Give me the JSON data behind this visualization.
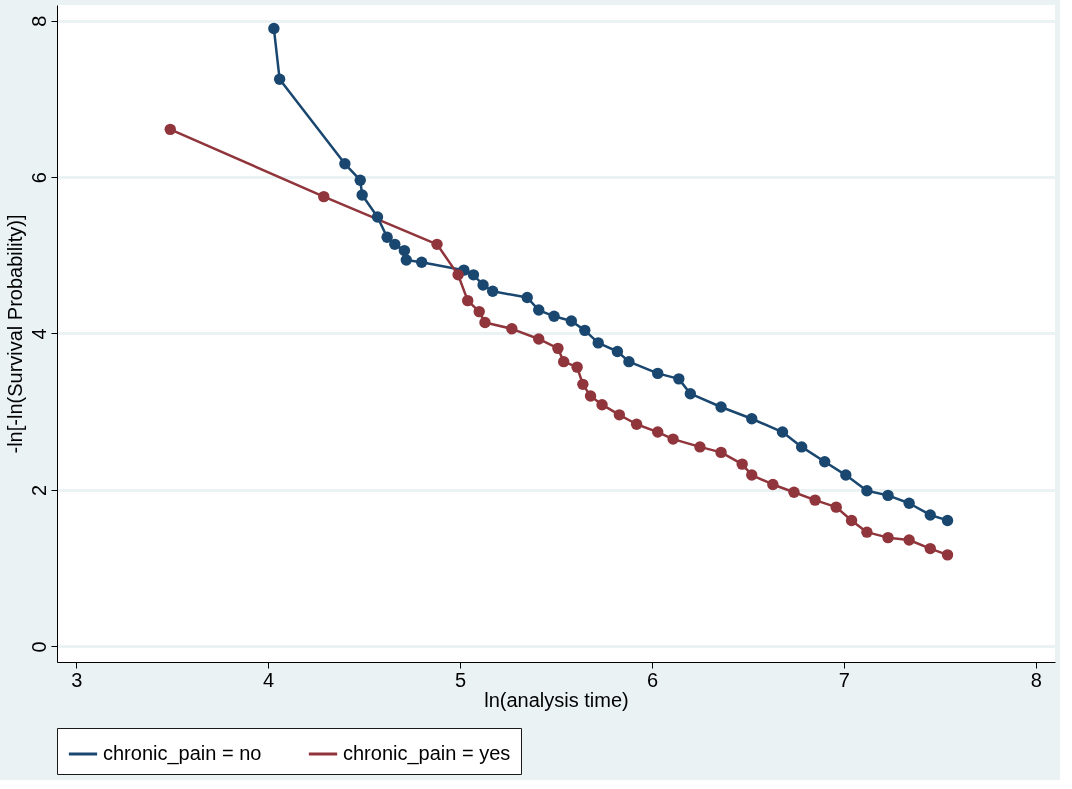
{
  "chart_data": {
    "type": "line",
    "xlabel": "ln(analysis time)",
    "ylabel": "-ln[-ln(Survival Probability)]",
    "xlim": [
      2.9,
      8.1
    ],
    "xticks": [
      3,
      4,
      5,
      6,
      7,
      8
    ],
    "ylim": [
      -0.2,
      8.2
    ],
    "yticks": [
      0,
      2,
      4,
      6,
      8
    ],
    "grid": "y",
    "legend": "bottom",
    "marker": "circle",
    "line_style": "solid",
    "series": [
      {
        "name": "chronic_pain = no",
        "color": "#1a476f",
        "x": [
          4.03,
          4.06,
          4.4,
          4.48,
          4.49,
          4.57,
          4.62,
          4.66,
          4.71,
          4.72,
          4.8,
          5.02,
          5.07,
          5.12,
          5.17,
          5.35,
          5.41,
          5.49,
          5.58,
          5.65,
          5.72,
          5.82,
          5.88,
          6.03,
          6.14,
          6.2,
          6.36,
          6.52,
          6.68,
          6.78,
          6.9,
          7.01,
          7.12,
          7.23,
          7.34,
          7.45,
          7.54
        ],
        "values": [
          7.9,
          7.25,
          6.17,
          5.96,
          5.77,
          5.49,
          5.23,
          5.14,
          5.06,
          4.94,
          4.91,
          4.81,
          4.75,
          4.62,
          4.54,
          4.46,
          4.3,
          4.22,
          4.16,
          4.04,
          3.88,
          3.77,
          3.64,
          3.49,
          3.42,
          3.23,
          3.06,
          2.91,
          2.74,
          2.55,
          2.36,
          2.19,
          1.99,
          1.93,
          1.83,
          1.68,
          1.61
        ]
      },
      {
        "name": "chronic_pain = yes",
        "color": "#90353b",
        "x": [
          3.49,
          4.29,
          4.88,
          4.99,
          5.04,
          5.1,
          5.13,
          5.27,
          5.41,
          5.51,
          5.54,
          5.61,
          5.64,
          5.68,
          5.74,
          5.83,
          5.92,
          6.03,
          6.11,
          6.25,
          6.36,
          6.47,
          6.52,
          6.63,
          6.74,
          6.85,
          6.96,
          7.04,
          7.12,
          7.23,
          7.34,
          7.45,
          7.54
        ],
        "values": [
          6.61,
          5.75,
          5.14,
          4.75,
          4.42,
          4.28,
          4.14,
          4.06,
          3.93,
          3.81,
          3.64,
          3.57,
          3.35,
          3.2,
          3.09,
          2.96,
          2.84,
          2.74,
          2.65,
          2.55,
          2.48,
          2.33,
          2.19,
          2.07,
          1.97,
          1.87,
          1.78,
          1.61,
          1.46,
          1.39,
          1.36,
          1.25,
          1.17
        ]
      }
    ]
  }
}
